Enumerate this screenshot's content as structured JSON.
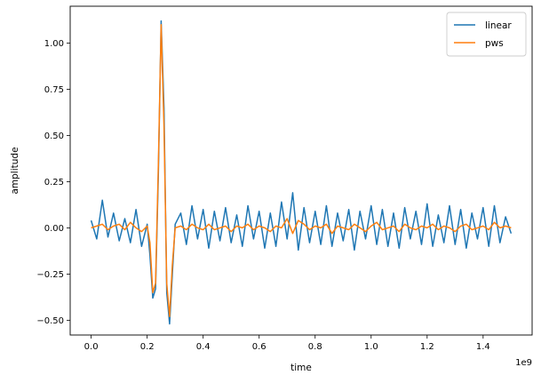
{
  "chart_data": {
    "type": "line",
    "title": "",
    "xlabel": "time",
    "ylabel": "amplitude",
    "x_offset_label": "1e9",
    "xlim": [
      -0.075,
      1.575
    ],
    "ylim": [
      -0.58,
      1.2
    ],
    "grid": false,
    "legend": "top-right",
    "x_ticks": [
      0.0,
      0.2,
      0.4,
      0.6,
      0.8,
      1.0,
      1.2,
      1.4
    ],
    "x_tick_labels": [
      "0.0",
      "0.2",
      "0.4",
      "0.6",
      "0.8",
      "1.0",
      "1.2",
      "1.4"
    ],
    "y_ticks": [
      -0.5,
      -0.25,
      0.0,
      0.25,
      0.5,
      0.75,
      1.0
    ],
    "y_tick_labels": [
      "−0.50",
      "−0.25",
      "0.00",
      "0.25",
      "0.50",
      "0.75",
      "1.00"
    ],
    "x": [
      0.0,
      0.02,
      0.04,
      0.06,
      0.08,
      0.1,
      0.12,
      0.14,
      0.16,
      0.18,
      0.2,
      0.21,
      0.22,
      0.23,
      0.24,
      0.25,
      0.26,
      0.27,
      0.28,
      0.29,
      0.3,
      0.32,
      0.34,
      0.36,
      0.38,
      0.4,
      0.42,
      0.44,
      0.46,
      0.48,
      0.5,
      0.52,
      0.54,
      0.56,
      0.58,
      0.6,
      0.62,
      0.64,
      0.66,
      0.68,
      0.7,
      0.72,
      0.74,
      0.76,
      0.78,
      0.8,
      0.82,
      0.84,
      0.86,
      0.88,
      0.9,
      0.92,
      0.94,
      0.96,
      0.98,
      1.0,
      1.02,
      1.04,
      1.06,
      1.08,
      1.1,
      1.12,
      1.14,
      1.16,
      1.18,
      1.2,
      1.22,
      1.24,
      1.26,
      1.28,
      1.3,
      1.32,
      1.34,
      1.36,
      1.38,
      1.4,
      1.42,
      1.44,
      1.46,
      1.48,
      1.5
    ],
    "series": [
      {
        "name": "linear",
        "color": "#1f77b4",
        "values": [
          0.04,
          -0.06,
          0.15,
          -0.05,
          0.08,
          -0.07,
          0.05,
          -0.08,
          0.1,
          -0.1,
          0.02,
          -0.15,
          -0.38,
          -0.33,
          0.3,
          1.12,
          0.65,
          -0.35,
          -0.52,
          -0.25,
          0.02,
          0.08,
          -0.09,
          0.12,
          -0.06,
          0.1,
          -0.11,
          0.09,
          -0.07,
          0.11,
          -0.08,
          0.07,
          -0.1,
          0.12,
          -0.06,
          0.09,
          -0.11,
          0.08,
          -0.1,
          0.14,
          -0.06,
          0.19,
          -0.12,
          0.11,
          -0.08,
          0.09,
          -0.09,
          0.12,
          -0.1,
          0.08,
          -0.07,
          0.1,
          -0.12,
          0.09,
          -0.06,
          0.12,
          -0.09,
          0.1,
          -0.1,
          0.08,
          -0.11,
          0.11,
          -0.06,
          0.09,
          -0.09,
          0.13,
          -0.1,
          0.07,
          -0.08,
          0.12,
          -0.09,
          0.1,
          -0.11,
          0.08,
          -0.06,
          0.11,
          -0.1,
          0.12,
          -0.08,
          0.06,
          -0.03
        ]
      },
      {
        "name": "pws",
        "color": "#ff7f0e",
        "values": [
          0.0,
          0.01,
          0.02,
          -0.01,
          0.01,
          0.02,
          -0.01,
          0.03,
          0.0,
          -0.02,
          0.01,
          -0.08,
          -0.35,
          -0.3,
          0.35,
          1.1,
          0.55,
          -0.3,
          -0.48,
          -0.2,
          0.0,
          0.01,
          -0.01,
          0.02,
          0.0,
          -0.01,
          0.02,
          -0.01,
          0.0,
          0.01,
          -0.02,
          0.01,
          0.0,
          0.02,
          -0.01,
          0.01,
          0.0,
          -0.02,
          0.01,
          0.0,
          0.05,
          -0.03,
          0.04,
          0.02,
          -0.01,
          0.01,
          0.0,
          0.02,
          -0.03,
          0.01,
          0.0,
          -0.01,
          0.02,
          0.0,
          -0.02,
          0.01,
          0.03,
          -0.01,
          0.0,
          0.01,
          -0.02,
          0.02,
          0.0,
          -0.01,
          0.01,
          0.0,
          0.02,
          -0.01,
          0.01,
          0.0,
          -0.02,
          0.01,
          0.02,
          -0.01,
          0.0,
          0.01,
          -0.01,
          0.03,
          0.0,
          0.01,
          0.0
        ]
      }
    ]
  }
}
